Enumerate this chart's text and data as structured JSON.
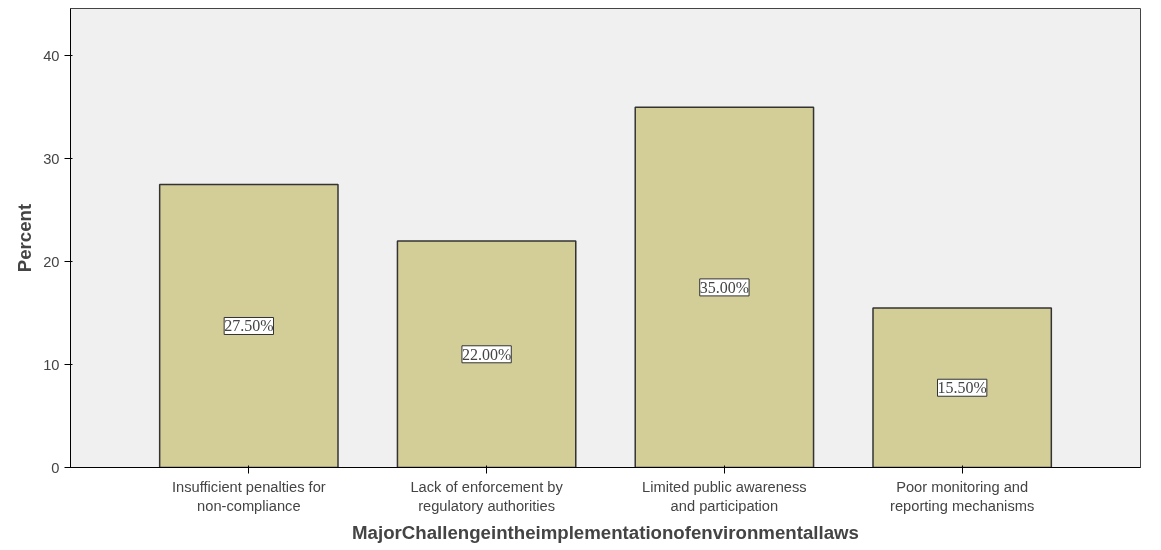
{
  "chart_data": {
    "type": "bar",
    "xlabel": "MajorChallengeintheimplementationofenvironmentallaws",
    "ylabel": "Percent",
    "categories": [
      "Insufficient penalties for\nnon-compliance",
      "Lack of enforcement by\nregulatory authorities",
      "Limited public awareness\nand participation",
      "Poor monitoring and\nreporting mechanisms"
    ],
    "values": [
      27.5,
      22.0,
      35.0,
      15.5
    ],
    "value_labels": [
      "27.50%",
      "22.00%",
      "35.00%",
      "15.50%"
    ],
    "color": "#d3cd98",
    "ylim": [
      0,
      44.6
    ],
    "yticks": [
      0,
      10,
      20,
      30,
      40
    ],
    "grid": false
  }
}
